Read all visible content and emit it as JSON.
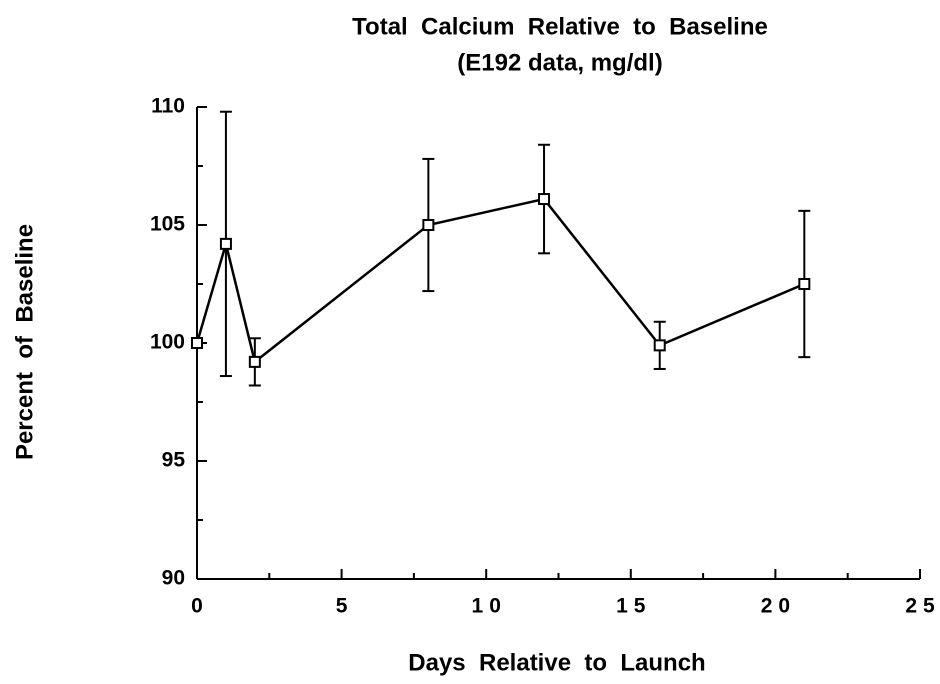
{
  "chart_data": {
    "type": "line",
    "title": "Total  Calcium  Relative  to  Baseline",
    "subtitle": "(E192 data, mg/dl)",
    "x_label": "Days  Relative  to  Launch",
    "y_label": "Percent  of  Baseline",
    "x": [
      0,
      1,
      2,
      8,
      12,
      16,
      21
    ],
    "values": [
      100,
      104.2,
      99.2,
      105,
      106.1,
      99.9,
      102.5
    ],
    "errors": [
      null,
      5.6,
      1.0,
      2.8,
      2.3,
      1.0,
      3.1
    ],
    "color": "#000000",
    "xlim": [
      0,
      25
    ],
    "xticks": [
      0,
      5,
      10,
      15,
      20,
      25
    ],
    "ylim": [
      90,
      110
    ],
    "yticks": [
      90,
      95,
      100,
      105,
      110
    ],
    "grid": false
  }
}
